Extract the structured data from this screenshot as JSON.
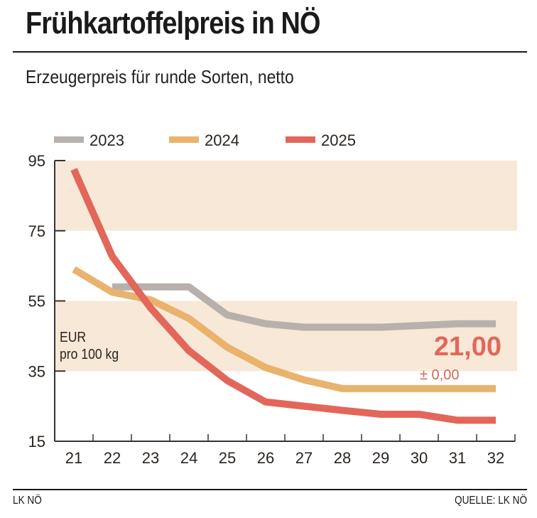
{
  "header": {
    "title": "Frühkartoffelpreis in NÖ",
    "subtitle": "Erzeugerpreis für runde Sorten, netto"
  },
  "footer": {
    "left": "LK NÖ",
    "right": "QUELLE: LK NÖ"
  },
  "colors": {
    "s2023": "#b7b0ac",
    "s2024": "#e9b36d",
    "s2025": "#e2675a",
    "band": "#f8e8d8",
    "axis": "#333333"
  },
  "chart_data": {
    "type": "line",
    "title": "Frühkartoffelpreis in NÖ",
    "subtitle": "Erzeugerpreis für runde Sorten, netto",
    "xlabel": "",
    "ylabel": "EUR pro 100 kg",
    "ylabel_lines": [
      "EUR",
      "pro 100 kg"
    ],
    "x": [
      21,
      22,
      23,
      24,
      25,
      26,
      27,
      28,
      29,
      30,
      31,
      32
    ],
    "x_tick_labels": [
      "21",
      "22",
      "23",
      "24",
      "25",
      "26",
      "27",
      "28",
      "29",
      "30",
      "31",
      "32"
    ],
    "y_ticks": [
      15,
      35,
      55,
      75,
      95
    ],
    "ylim": [
      15,
      95
    ],
    "bands": [
      [
        75,
        95
      ],
      [
        35,
        55
      ]
    ],
    "legend_position": "top-left",
    "series": [
      {
        "name": "2023",
        "color_key": "s2023",
        "values": [
          null,
          59,
          59,
          59,
          51,
          48.5,
          47.5,
          47.5,
          47.5,
          48,
          48.5,
          48.5
        ]
      },
      {
        "name": "2024",
        "color_key": "s2024",
        "values": [
          64,
          57.5,
          55.3,
          50,
          41.8,
          36,
          32.5,
          30,
          30,
          30,
          30,
          30
        ]
      },
      {
        "name": "2025",
        "color_key": "s2025",
        "values": [
          92.5,
          67.7,
          53,
          40.8,
          32.3,
          26.2,
          25,
          23.8,
          22.7,
          22.7,
          21,
          21
        ]
      }
    ],
    "annotations": {
      "current_value": "21,00",
      "change": "± 0,00"
    }
  }
}
